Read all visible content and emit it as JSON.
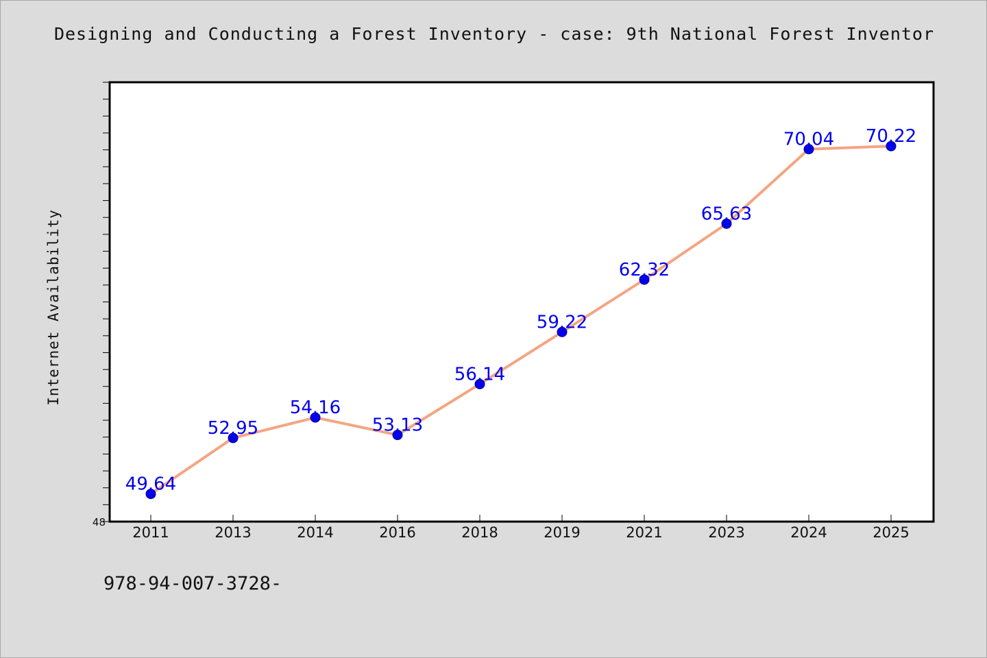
{
  "page": {
    "title": "Designing and Conducting a Forest Inventory - case: 9th National Forest Inventor",
    "footnote": "978-94-007-3728-"
  },
  "colors": {
    "background": "#dcdcdc",
    "plot_background": "#ffffff",
    "line": "#f4a582",
    "marker": "#0000ee",
    "data_label": "#0000ee"
  },
  "chart_data": {
    "type": "line",
    "categories": [
      "2011",
      "2013",
      "2014",
      "2016",
      "2018",
      "2019",
      "2021",
      "2023",
      "2024",
      "2025"
    ],
    "series": [
      {
        "values": [
          49.64,
          52.95,
          54.16,
          53.13,
          56.14,
          59.22,
          62.32,
          65.63,
          70.04,
          70.22
        ],
        "data_labels": [
          "49.64",
          "52.95",
          "54.16",
          "53.13",
          "56.14",
          "59.22",
          "62.32",
          "65.63",
          "70.04",
          "70.22"
        ]
      }
    ],
    "title": "Designing and Conducting a Forest Inventory - case: 9th National Forest Inventor",
    "xlabel": "",
    "ylabel": "Internet Availability",
    "ylim": [
      48,
      74
    ],
    "y_tick_labels": [
      "48"
    ],
    "y_minor_tick_step": 1,
    "grid": false,
    "legend": "none"
  }
}
